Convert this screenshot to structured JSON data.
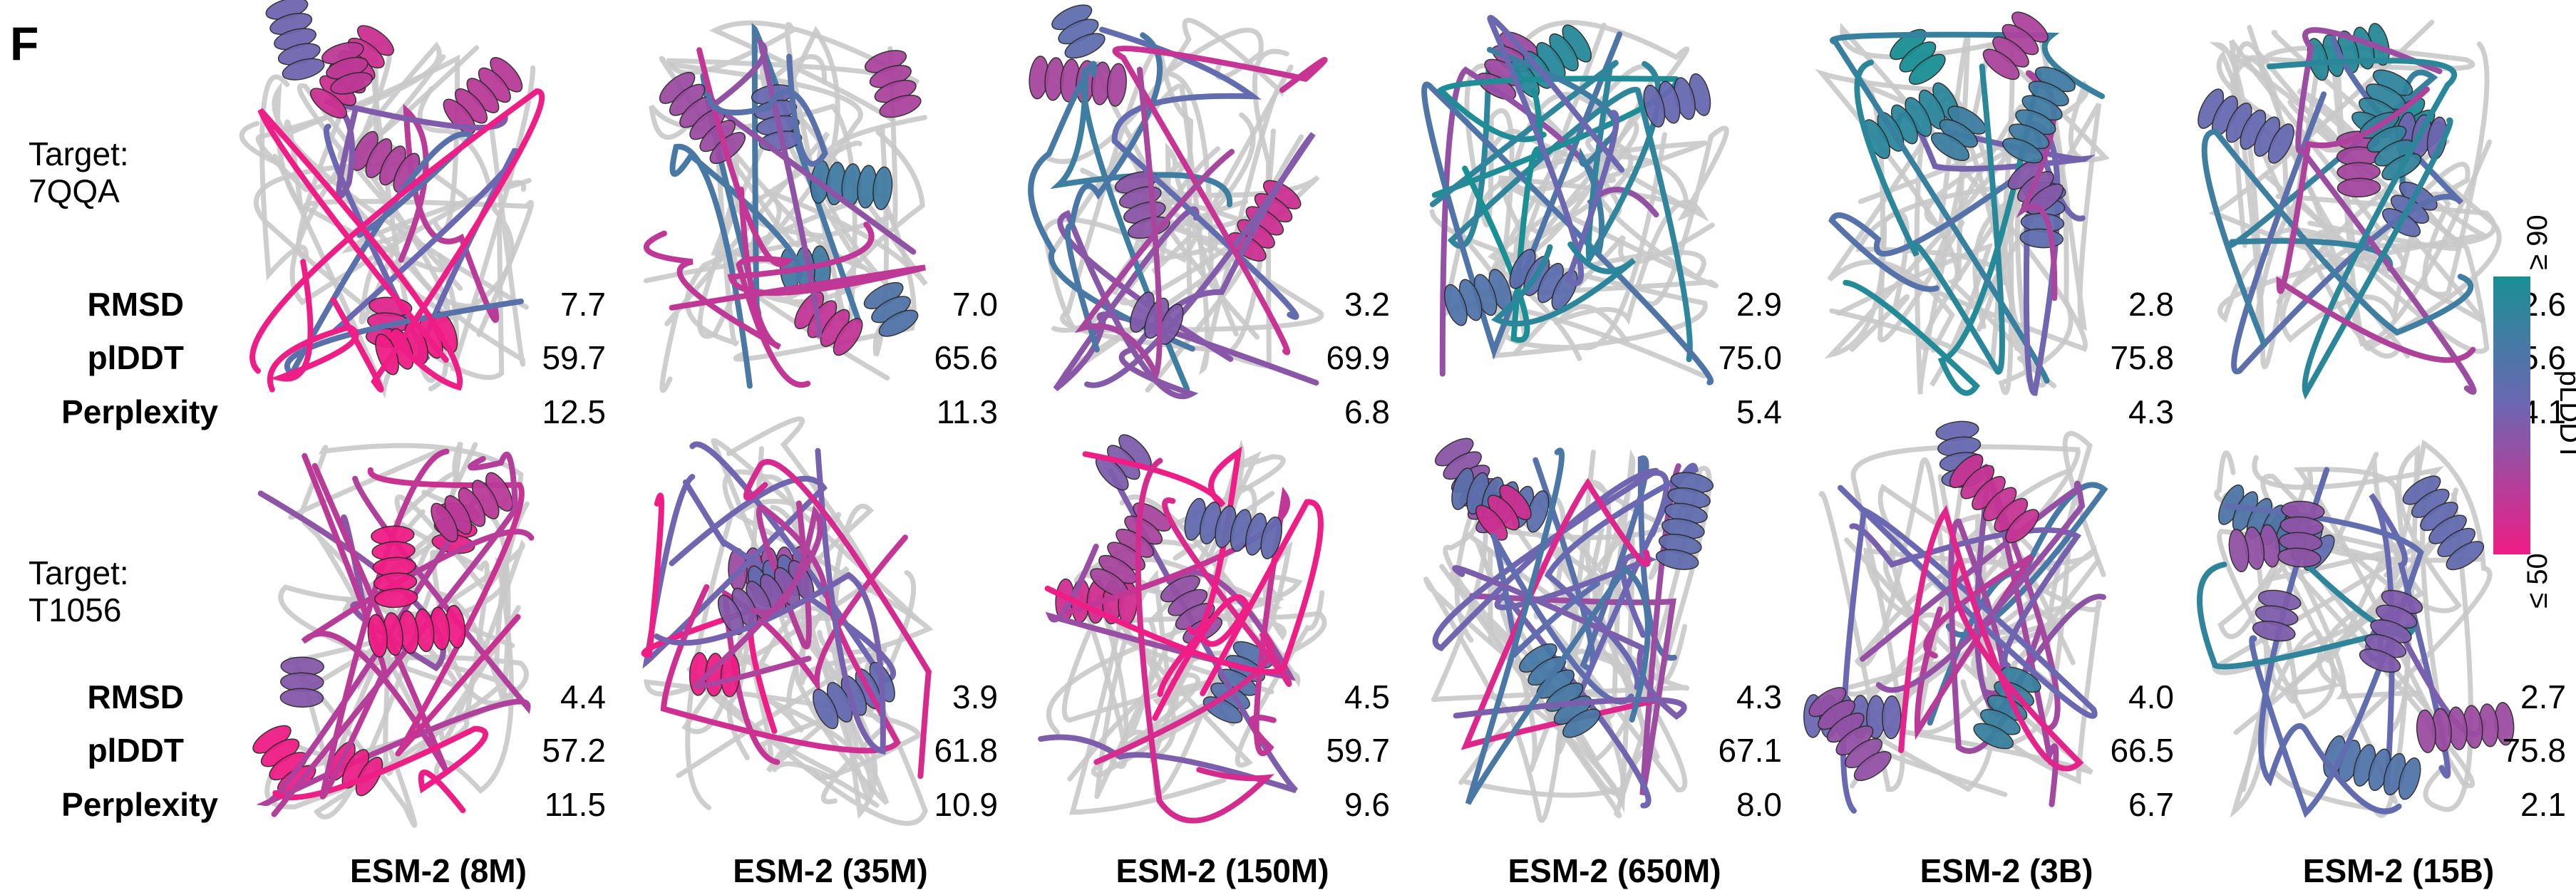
{
  "panel_label": "F",
  "metric_labels": {
    "rmsd": "RMSD",
    "plddt": "plDDT",
    "perplexity": "Perplexity"
  },
  "colorbar": {
    "title": "pLDDT",
    "top_label": "≥ 90",
    "bottom_label": "≤ 50",
    "colors": {
      "high": "#1a8f94",
      "mid": "#6a68b2",
      "low": "#ef1d86"
    }
  },
  "models": [
    "ESM-2 (8M)",
    "ESM-2 (35M)",
    "ESM-2 (150M)",
    "ESM-2 (650M)",
    "ESM-2 (3B)",
    "ESM-2 (15B)"
  ],
  "rows": [
    {
      "target_line1": "Target:",
      "target_line2": "7QQA",
      "values": [
        {
          "rmsd": "7.7",
          "plddt": "59.7",
          "perplexity": "12.5"
        },
        {
          "rmsd": "7.0",
          "plddt": "65.6",
          "perplexity": "11.3"
        },
        {
          "rmsd": "3.2",
          "plddt": "69.9",
          "perplexity": "6.8"
        },
        {
          "rmsd": "2.9",
          "plddt": "75.0",
          "perplexity": "5.4"
        },
        {
          "rmsd": "2.8",
          "plddt": "75.8",
          "perplexity": "4.3"
        },
        {
          "rmsd": "2.6",
          "plddt": "75.6",
          "perplexity": "4.1"
        }
      ]
    },
    {
      "target_line1": "Target:",
      "target_line2": "T1056",
      "values": [
        {
          "rmsd": "4.4",
          "plddt": "57.2",
          "perplexity": "11.5"
        },
        {
          "rmsd": "3.9",
          "plddt": "61.8",
          "perplexity": "10.9"
        },
        {
          "rmsd": "4.5",
          "plddt": "59.7",
          "perplexity": "9.6"
        },
        {
          "rmsd": "4.3",
          "plddt": "67.1",
          "perplexity": "8.0"
        },
        {
          "rmsd": "4.0",
          "plddt": "66.5",
          "perplexity": "6.7"
        },
        {
          "rmsd": "2.7",
          "plddt": "75.8",
          "perplexity": "2.1"
        }
      ]
    }
  ]
}
